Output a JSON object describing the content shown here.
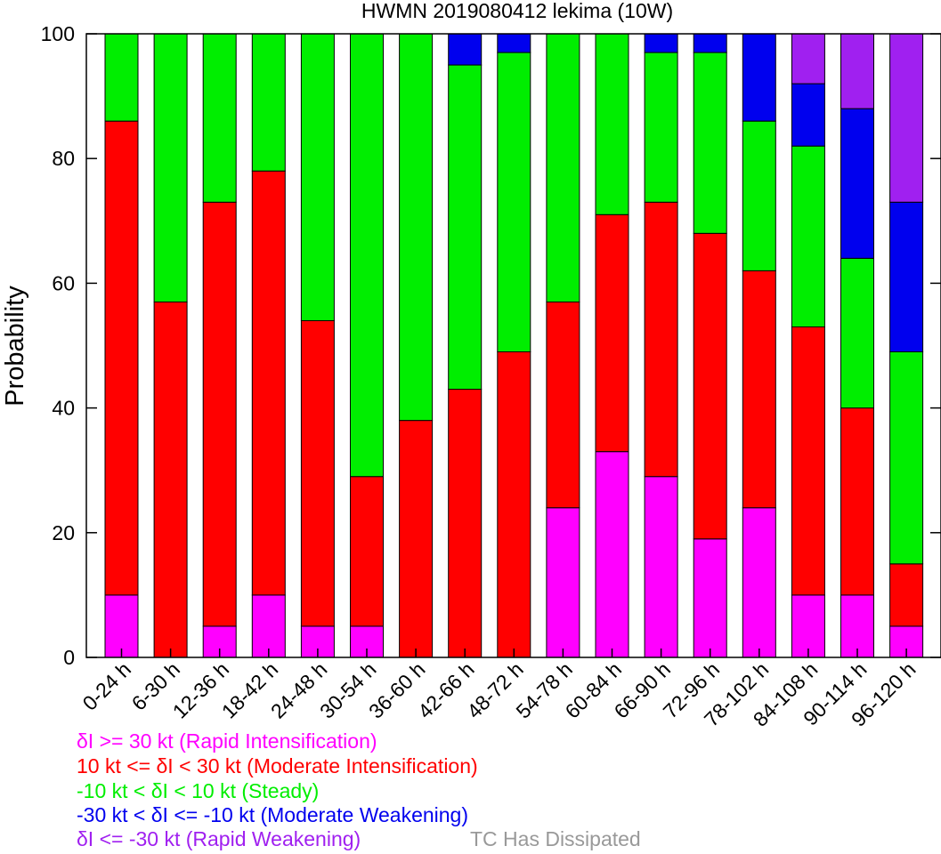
{
  "chart_data": {
    "type": "bar",
    "stacked": true,
    "title": "HWMN 2019080412 lekima (10W)",
    "xlabel": "",
    "ylabel": "Probability",
    "ylim": [
      0,
      100
    ],
    "yticks": [
      0,
      20,
      40,
      60,
      80,
      100
    ],
    "grid": false,
    "categories": [
      "0-24 h",
      "6-30 h",
      "12-36 h",
      "18-42 h",
      "24-48 h",
      "30-54 h",
      "36-60 h",
      "42-66 h",
      "48-72 h",
      "54-78 h",
      "60-84 h",
      "66-90 h",
      "72-96 h",
      "78-102 h",
      "84-108 h",
      "90-114 h",
      "96-120 h"
    ],
    "series": [
      {
        "name": "δI >= 30 kt (Rapid Intensification)",
        "color": "#ff00ff",
        "values": [
          10,
          0,
          5,
          10,
          5,
          5,
          0,
          0,
          0,
          24,
          33,
          29,
          19,
          24,
          10,
          10,
          5
        ]
      },
      {
        "name": "10 kt <= δI < 30 kt (Moderate Intensification)",
        "color": "#ff0000",
        "values": [
          76,
          57,
          68,
          68,
          49,
          24,
          38,
          43,
          49,
          33,
          38,
          44,
          49,
          38,
          43,
          30,
          10
        ]
      },
      {
        "name": "-10 kt < δI < 10 kt (Steady)",
        "color": "#00ee00",
        "values": [
          14,
          43,
          27,
          22,
          46,
          71,
          62,
          52,
          48,
          43,
          29,
          24,
          29,
          24,
          29,
          24,
          34
        ]
      },
      {
        "name": "-30 kt < δI <= -10 kt (Moderate Weakening)",
        "color": "#0000ee",
        "values": [
          0,
          0,
          0,
          0,
          0,
          0,
          0,
          5,
          3,
          0,
          0,
          3,
          3,
          14,
          10,
          24,
          24
        ]
      },
      {
        "name": "δI <= -30 kt (Rapid Weakening)",
        "color": "#a020f0",
        "values": [
          0,
          0,
          0,
          0,
          0,
          0,
          0,
          0,
          0,
          0,
          0,
          0,
          0,
          0,
          8,
          12,
          27
        ]
      }
    ],
    "extra_legend": {
      "name": "TC Has Dissipated",
      "color": "#999999"
    }
  }
}
